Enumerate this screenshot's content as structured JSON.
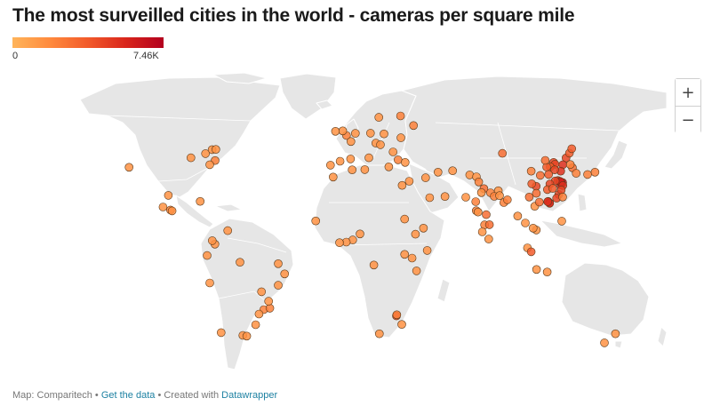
{
  "title": "The most surveilled cities in the world - cameras per square mile",
  "legend": {
    "min_label": "0",
    "max_label": "7.46K",
    "colors": [
      "#ffb45a",
      "#ff8a3d",
      "#f25a2a",
      "#d9261c",
      "#b3001e"
    ]
  },
  "map": {
    "land_color": "#e6e6e6",
    "border_color": "#ffffff",
    "marker_stroke": "#5a3a1a",
    "marker_radius": 4.5,
    "cities": [
      {
        "lon": -122.4,
        "lat": 37.8,
        "v": 0.2
      },
      {
        "lon": -79.4,
        "lat": 43.7,
        "v": 0.2
      },
      {
        "lon": -75.7,
        "lat": 45.4,
        "v": 0.2
      },
      {
        "lon": -73.6,
        "lat": 45.5,
        "v": 0.2
      },
      {
        "lon": -74.0,
        "lat": 40.7,
        "v": 0.3
      },
      {
        "lon": -77.0,
        "lat": 38.9,
        "v": 0.2
      },
      {
        "lon": -87.6,
        "lat": 41.9,
        "v": 0.2
      },
      {
        "lon": -100.3,
        "lat": 25.7,
        "v": 0.2
      },
      {
        "lon": -103.3,
        "lat": 20.7,
        "v": 0.2
      },
      {
        "lon": -99.1,
        "lat": 19.4,
        "v": 0.3
      },
      {
        "lon": -98.2,
        "lat": 19.0,
        "v": 0.2
      },
      {
        "lon": -82.4,
        "lat": 23.1,
        "v": 0.2
      },
      {
        "lon": -74.1,
        "lat": 4.7,
        "v": 0.2
      },
      {
        "lon": -75.6,
        "lat": 6.2,
        "v": 0.2
      },
      {
        "lon": -77.0,
        "lat": -12.0,
        "v": 0.2
      },
      {
        "lon": -78.5,
        "lat": -0.2,
        "v": 0.2
      },
      {
        "lon": -70.6,
        "lat": -33.4,
        "v": 0.2
      },
      {
        "lon": -58.4,
        "lat": -34.6,
        "v": 0.2
      },
      {
        "lon": -56.2,
        "lat": -34.9,
        "v": 0.2
      },
      {
        "lon": -46.6,
        "lat": -23.5,
        "v": 0.3
      },
      {
        "lon": -43.2,
        "lat": -22.9,
        "v": 0.3
      },
      {
        "lon": -43.9,
        "lat": -19.9,
        "v": 0.2
      },
      {
        "lon": -47.9,
        "lat": -15.8,
        "v": 0.2
      },
      {
        "lon": -38.5,
        "lat": -13.0,
        "v": 0.2
      },
      {
        "lon": -34.9,
        "lat": -8.1,
        "v": 0.2
      },
      {
        "lon": -38.5,
        "lat": -3.7,
        "v": 0.2
      },
      {
        "lon": -49.3,
        "lat": -25.4,
        "v": 0.2
      },
      {
        "lon": -51.2,
        "lat": -30.0,
        "v": 0.2
      },
      {
        "lon": -60.0,
        "lat": -3.1,
        "v": 0.2
      },
      {
        "lon": -66.9,
        "lat": 10.5,
        "v": 0.2
      },
      {
        "lon": -0.1,
        "lat": 51.5,
        "v": 0.3
      },
      {
        "lon": -2.2,
        "lat": 53.5,
        "v": 0.2
      },
      {
        "lon": -6.3,
        "lat": 53.3,
        "v": 0.2
      },
      {
        "lon": 2.4,
        "lat": 48.9,
        "v": 0.2
      },
      {
        "lon": 4.9,
        "lat": 52.4,
        "v": 0.2
      },
      {
        "lon": 13.4,
        "lat": 52.5,
        "v": 0.2
      },
      {
        "lon": 12.5,
        "lat": 41.9,
        "v": 0.2
      },
      {
        "lon": -3.7,
        "lat": 40.4,
        "v": 0.2
      },
      {
        "lon": 2.2,
        "lat": 41.4,
        "v": 0.2
      },
      {
        "lon": -9.1,
        "lat": 38.7,
        "v": 0.2
      },
      {
        "lon": 21.0,
        "lat": 52.2,
        "v": 0.2
      },
      {
        "lon": 18.1,
        "lat": 59.3,
        "v": 0.2
      },
      {
        "lon": 30.3,
        "lat": 59.9,
        "v": 0.3
      },
      {
        "lon": 37.6,
        "lat": 55.8,
        "v": 0.3
      },
      {
        "lon": 30.5,
        "lat": 50.5,
        "v": 0.2
      },
      {
        "lon": 28.9,
        "lat": 41.0,
        "v": 0.3
      },
      {
        "lon": 32.9,
        "lat": 39.9,
        "v": 0.2
      },
      {
        "lon": 23.7,
        "lat": 38.0,
        "v": 0.2
      },
      {
        "lon": 16.4,
        "lat": 48.2,
        "v": 0.2
      },
      {
        "lon": 19.0,
        "lat": 47.5,
        "v": 0.2
      },
      {
        "lon": 26.1,
        "lat": 44.4,
        "v": 0.2
      },
      {
        "lon": 35.2,
        "lat": 31.8,
        "v": 0.2
      },
      {
        "lon": 31.2,
        "lat": 30.0,
        "v": 0.2
      },
      {
        "lon": 44.4,
        "lat": 33.3,
        "v": 0.2
      },
      {
        "lon": 51.4,
        "lat": 35.7,
        "v": 0.2
      },
      {
        "lon": 46.7,
        "lat": 24.7,
        "v": 0.2
      },
      {
        "lon": 55.3,
        "lat": 25.2,
        "v": 0.2
      },
      {
        "lon": 59.6,
        "lat": 36.3,
        "v": 0.2
      },
      {
        "lon": 69.2,
        "lat": 34.5,
        "v": 0.2
      },
      {
        "lon": 67.0,
        "lat": 24.9,
        "v": 0.2
      },
      {
        "lon": 73.0,
        "lat": 33.7,
        "v": 0.2
      },
      {
        "lon": 74.3,
        "lat": 31.5,
        "v": 0.3
      },
      {
        "lon": 77.2,
        "lat": 28.6,
        "v": 0.4
      },
      {
        "lon": 80.9,
        "lat": 26.8,
        "v": 0.3
      },
      {
        "lon": 75.8,
        "lat": 26.9,
        "v": 0.2
      },
      {
        "lon": 72.6,
        "lat": 23.0,
        "v": 0.3
      },
      {
        "lon": 72.9,
        "lat": 19.1,
        "v": 0.3
      },
      {
        "lon": 73.9,
        "lat": 18.5,
        "v": 0.2
      },
      {
        "lon": 78.5,
        "lat": 17.4,
        "v": 0.4
      },
      {
        "lon": 77.6,
        "lat": 13.0,
        "v": 0.3
      },
      {
        "lon": 80.3,
        "lat": 13.1,
        "v": 0.4
      },
      {
        "lon": 88.4,
        "lat": 22.6,
        "v": 0.3
      },
      {
        "lon": 90.4,
        "lat": 23.8,
        "v": 0.3
      },
      {
        "lon": 85.3,
        "lat": 27.7,
        "v": 0.2
      },
      {
        "lon": 76.3,
        "lat": 10.0,
        "v": 0.2
      },
      {
        "lon": 79.9,
        "lat": 6.9,
        "v": 0.2
      },
      {
        "lon": 83.0,
        "lat": 25.3,
        "v": 0.3
      },
      {
        "lon": 86.0,
        "lat": 25.6,
        "v": 0.2
      },
      {
        "lon": 96.2,
        "lat": 16.8,
        "v": 0.2
      },
      {
        "lon": 100.5,
        "lat": 13.8,
        "v": 0.2
      },
      {
        "lon": 106.7,
        "lat": 10.8,
        "v": 0.2
      },
      {
        "lon": 105.8,
        "lat": 21.0,
        "v": 0.2
      },
      {
        "lon": 104.9,
        "lat": 11.6,
        "v": 0.2
      },
      {
        "lon": 101.7,
        "lat": 3.1,
        "v": 0.2
      },
      {
        "lon": 103.8,
        "lat": 1.4,
        "v": 0.5
      },
      {
        "lon": 106.8,
        "lat": -6.2,
        "v": 0.2
      },
      {
        "lon": 112.8,
        "lat": -7.3,
        "v": 0.2
      },
      {
        "lon": 121.0,
        "lat": 14.6,
        "v": 0.2
      },
      {
        "lon": 116.4,
        "lat": 39.9,
        "v": 0.6
      },
      {
        "lon": 117.2,
        "lat": 39.1,
        "v": 0.6
      },
      {
        "lon": 114.5,
        "lat": 38.0,
        "v": 0.5
      },
      {
        "lon": 112.5,
        "lat": 37.9,
        "v": 0.5
      },
      {
        "lon": 111.7,
        "lat": 40.8,
        "v": 0.4
      },
      {
        "lon": 123.4,
        "lat": 41.8,
        "v": 0.6
      },
      {
        "lon": 125.3,
        "lat": 43.9,
        "v": 0.5
      },
      {
        "lon": 126.6,
        "lat": 45.8,
        "v": 0.5
      },
      {
        "lon": 121.6,
        "lat": 38.9,
        "v": 0.7
      },
      {
        "lon": 120.4,
        "lat": 36.1,
        "v": 0.7
      },
      {
        "lon": 117.0,
        "lat": 36.7,
        "v": 0.6
      },
      {
        "lon": 113.6,
        "lat": 34.7,
        "v": 0.5
      },
      {
        "lon": 108.9,
        "lat": 34.3,
        "v": 0.4
      },
      {
        "lon": 103.8,
        "lat": 36.1,
        "v": 0.3
      },
      {
        "lon": 87.6,
        "lat": 43.8,
        "v": 0.4
      },
      {
        "lon": 118.8,
        "lat": 32.1,
        "v": 0.7
      },
      {
        "lon": 121.5,
        "lat": 31.2,
        "v": 0.9
      },
      {
        "lon": 120.2,
        "lat": 30.3,
        "v": 0.8
      },
      {
        "lon": 119.9,
        "lat": 31.8,
        "v": 0.7
      },
      {
        "lon": 120.6,
        "lat": 31.3,
        "v": 0.8
      },
      {
        "lon": 120.3,
        "lat": 31.6,
        "v": 0.8
      },
      {
        "lon": 117.3,
        "lat": 31.9,
        "v": 0.6
      },
      {
        "lon": 114.3,
        "lat": 30.6,
        "v": 0.6
      },
      {
        "lon": 112.9,
        "lat": 28.2,
        "v": 0.5
      },
      {
        "lon": 115.9,
        "lat": 28.7,
        "v": 0.5
      },
      {
        "lon": 119.3,
        "lat": 26.1,
        "v": 0.6
      },
      {
        "lon": 118.1,
        "lat": 24.5,
        "v": 0.6
      },
      {
        "lon": 113.3,
        "lat": 23.1,
        "v": 0.8
      },
      {
        "lon": 114.1,
        "lat": 22.5,
        "v": 1.0
      },
      {
        "lon": 114.2,
        "lat": 22.3,
        "v": 0.7
      },
      {
        "lon": 113.1,
        "lat": 23.0,
        "v": 0.7
      },
      {
        "lon": 108.4,
        "lat": 22.8,
        "v": 0.4
      },
      {
        "lon": 106.6,
        "lat": 29.6,
        "v": 0.6
      },
      {
        "lon": 104.1,
        "lat": 30.7,
        "v": 0.5
      },
      {
        "lon": 102.7,
        "lat": 25.0,
        "v": 0.4
      },
      {
        "lon": 106.7,
        "lat": 26.6,
        "v": 0.4
      },
      {
        "lon": 121.6,
        "lat": 29.9,
        "v": 0.7
      },
      {
        "lon": 120.7,
        "lat": 28.0,
        "v": 0.6
      },
      {
        "lon": 121.5,
        "lat": 25.0,
        "v": 0.3
      },
      {
        "lon": 127.0,
        "lat": 37.6,
        "v": 0.4
      },
      {
        "lon": 129.1,
        "lat": 35.2,
        "v": 0.3
      },
      {
        "lon": 139.7,
        "lat": 35.7,
        "v": 0.3
      },
      {
        "lon": 135.5,
        "lat": 34.7,
        "v": 0.3
      },
      {
        "lon": 125.8,
        "lat": 39.0,
        "v": 0.3
      },
      {
        "lon": 3.4,
        "lat": 6.5,
        "v": 0.2
      },
      {
        "lon": 7.5,
        "lat": 9.1,
        "v": 0.2
      },
      {
        "lon": -0.2,
        "lat": 5.6,
        "v": 0.2
      },
      {
        "lon": -4.0,
        "lat": 5.3,
        "v": 0.2
      },
      {
        "lon": -17.4,
        "lat": 14.7,
        "v": 0.2
      },
      {
        "lon": -7.6,
        "lat": 33.6,
        "v": 0.2
      },
      {
        "lon": 3.1,
        "lat": 36.7,
        "v": 0.2
      },
      {
        "lon": 10.2,
        "lat": 36.8,
        "v": 0.2
      },
      {
        "lon": 32.6,
        "lat": 15.5,
        "v": 0.2
      },
      {
        "lon": 38.7,
        "lat": 9.0,
        "v": 0.2
      },
      {
        "lon": 36.8,
        "lat": -1.3,
        "v": 0.2
      },
      {
        "lon": 39.3,
        "lat": -6.8,
        "v": 0.2
      },
      {
        "lon": 32.6,
        "lat": 0.3,
        "v": 0.2
      },
      {
        "lon": 15.3,
        "lat": -4.3,
        "v": 0.2
      },
      {
        "lon": 28.0,
        "lat": -26.2,
        "v": 0.6
      },
      {
        "lon": 28.2,
        "lat": -25.7,
        "v": 0.3
      },
      {
        "lon": 18.4,
        "lat": -33.9,
        "v": 0.2
      },
      {
        "lon": 31.0,
        "lat": -29.9,
        "v": 0.2
      },
      {
        "lon": 151.2,
        "lat": -33.9,
        "v": 0.2
      },
      {
        "lon": 145.0,
        "lat": -37.8,
        "v": 0.2
      },
      {
        "lon": 43.2,
        "lat": 11.6,
        "v": 0.2
      },
      {
        "lon": 45.3,
        "lat": 2.0,
        "v": 0.2
      }
    ]
  },
  "zoom": {
    "in_label": "+",
    "out_label": "−"
  },
  "footer": {
    "prefix": "Map: Comparitech • ",
    "link1": "Get the data",
    "sep": " • Created with ",
    "link2": "Datawrapper"
  }
}
